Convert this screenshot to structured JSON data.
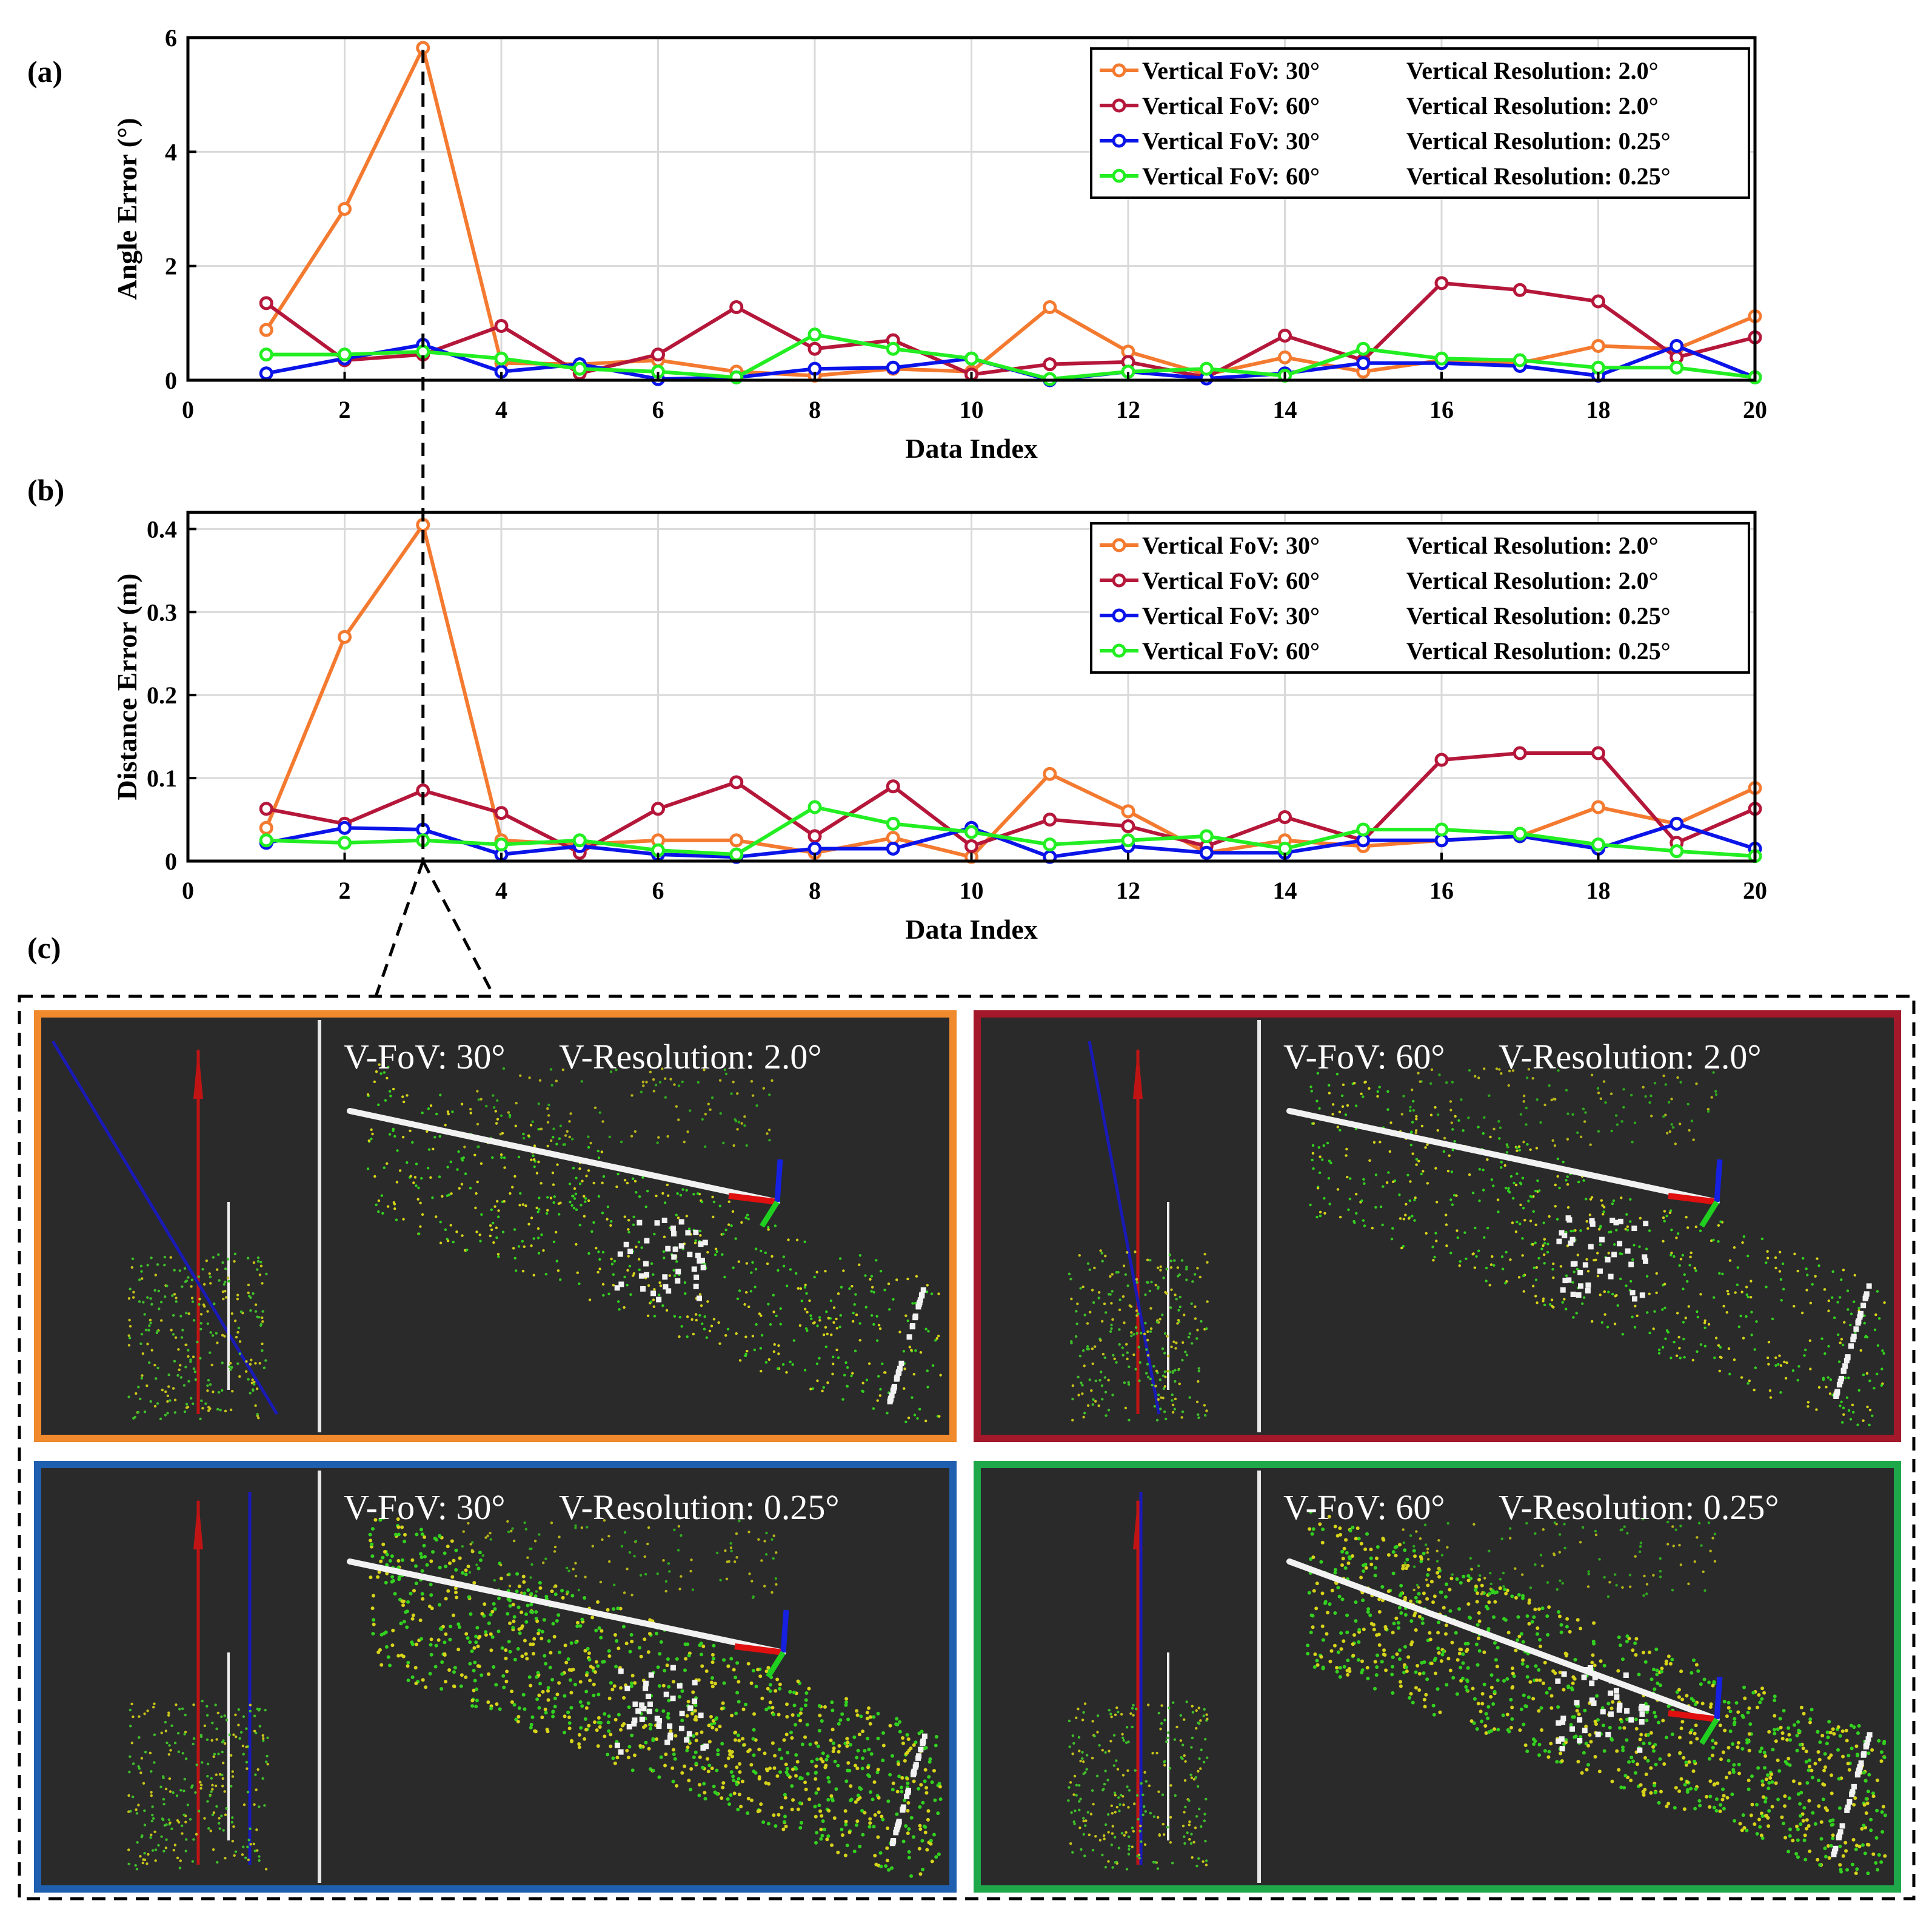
{
  "colors": {
    "orange": "#F47A30",
    "red": "#B5173A",
    "blue": "#0A14E8",
    "green": "#22EE22",
    "grid": "#d9d9d9",
    "scene_bg": "#2a2a2a",
    "frame_orange": "#F08A2C",
    "frame_red": "#A3182A",
    "frame_blue": "#1F5FAF",
    "frame_green": "#1EA84A"
  },
  "panels": {
    "a": "(a)",
    "b": "(b)",
    "c": "(c)"
  },
  "chart_data": [
    {
      "type": "line",
      "panel": "(a)",
      "ylabel": "Angle Error (°)",
      "xlabel": "Data Index",
      "xlim": [
        0,
        20
      ],
      "ylim": [
        0,
        6
      ],
      "xticks": [
        0,
        2,
        4,
        6,
        8,
        10,
        12,
        14,
        16,
        18,
        20
      ],
      "yticks": [
        0,
        2,
        4,
        6
      ],
      "x": [
        1,
        2,
        3,
        4,
        5,
        6,
        7,
        8,
        9,
        10,
        11,
        12,
        13,
        14,
        15,
        16,
        17,
        18,
        19,
        20
      ],
      "legend_position": "top-right",
      "series": [
        {
          "name_fov": "Vertical FoV: 30°",
          "name_res": "Vertical Resolution: 2.0°",
          "color": "orange",
          "values": [
            0.88,
            3.0,
            5.82,
            0.3,
            0.28,
            0.35,
            0.15,
            0.08,
            0.2,
            0.15,
            1.28,
            0.5,
            0.1,
            0.4,
            0.15,
            0.35,
            0.3,
            0.6,
            0.55,
            1.12
          ]
        },
        {
          "name_fov": "Vertical FoV: 60°",
          "name_res": "Vertical Resolution: 2.0°",
          "color": "red",
          "values": [
            1.35,
            0.35,
            0.45,
            0.95,
            0.12,
            0.45,
            1.28,
            0.55,
            0.7,
            0.1,
            0.28,
            0.32,
            0.05,
            0.78,
            0.35,
            1.7,
            1.58,
            1.38,
            0.4,
            0.75
          ]
        },
        {
          "name_fov": "Vertical FoV: 30°",
          "name_res": "Vertical Resolution: 0.25°",
          "color": "blue",
          "values": [
            0.12,
            0.38,
            0.62,
            0.15,
            0.28,
            0.02,
            0.05,
            0.2,
            0.22,
            0.38,
            0.0,
            0.15,
            0.03,
            0.12,
            0.3,
            0.3,
            0.25,
            0.08,
            0.6,
            0.05
          ]
        },
        {
          "name_fov": "Vertical FoV: 60°",
          "name_res": "Vertical Resolution: 0.25°",
          "color": "green",
          "values": [
            0.45,
            0.45,
            0.5,
            0.38,
            0.2,
            0.15,
            0.05,
            0.8,
            0.55,
            0.38,
            0.02,
            0.15,
            0.2,
            0.08,
            0.55,
            0.38,
            0.35,
            0.22,
            0.22,
            0.05
          ]
        }
      ]
    },
    {
      "type": "line",
      "panel": "(b)",
      "ylabel": "Distance Error (m)",
      "xlabel": "Data Index",
      "xlim": [
        0,
        20
      ],
      "ylim": [
        0,
        0.42
      ],
      "xticks": [
        0,
        2,
        4,
        6,
        8,
        10,
        12,
        14,
        16,
        18,
        20
      ],
      "yticks": [
        0,
        0.1,
        0.2,
        0.3,
        0.4
      ],
      "ytick_labels": [
        "0",
        "0.1",
        "0.2",
        "0.3",
        "0.4"
      ],
      "x": [
        1,
        2,
        3,
        4,
        5,
        6,
        7,
        8,
        9,
        10,
        11,
        12,
        13,
        14,
        15,
        16,
        17,
        18,
        19,
        20
      ],
      "legend_position": "top-right",
      "series": [
        {
          "name_fov": "Vertical FoV: 30°",
          "name_res": "Vertical Resolution: 2.0°",
          "color": "orange",
          "values": [
            0.04,
            0.27,
            0.405,
            0.025,
            0.02,
            0.025,
            0.025,
            0.01,
            0.028,
            0.005,
            0.105,
            0.06,
            0.01,
            0.025,
            0.018,
            0.025,
            0.03,
            0.065,
            0.045,
            0.088
          ]
        },
        {
          "name_fov": "Vertical FoV: 60°",
          "name_res": "Vertical Resolution: 2.0°",
          "color": "red",
          "values": [
            0.063,
            0.045,
            0.085,
            0.058,
            0.01,
            0.063,
            0.095,
            0.03,
            0.09,
            0.018,
            0.05,
            0.042,
            0.018,
            0.053,
            0.025,
            0.122,
            0.13,
            0.13,
            0.022,
            0.063
          ]
        },
        {
          "name_fov": "Vertical FoV: 30°",
          "name_res": "Vertical Resolution: 0.25°",
          "color": "blue",
          "values": [
            0.022,
            0.04,
            0.038,
            0.008,
            0.018,
            0.008,
            0.005,
            0.015,
            0.015,
            0.04,
            0.005,
            0.018,
            0.01,
            0.01,
            0.025,
            0.025,
            0.03,
            0.015,
            0.045,
            0.015
          ]
        },
        {
          "name_fov": "Vertical FoV: 60°",
          "name_res": "Vertical Resolution: 0.25°",
          "color": "green",
          "values": [
            0.025,
            0.022,
            0.025,
            0.02,
            0.025,
            0.013,
            0.008,
            0.065,
            0.045,
            0.035,
            0.02,
            0.025,
            0.03,
            0.015,
            0.038,
            0.038,
            0.033,
            0.02,
            0.012,
            0.006
          ]
        }
      ]
    }
  ],
  "scenes": [
    {
      "fov": "V-FoV: 30°",
      "res": "V-Resolution: 2.0°",
      "frame": "frame_orange",
      "axis_color": "blue"
    },
    {
      "fov": "V-FoV: 60°",
      "res": "V-Resolution: 2.0°",
      "frame": "frame_red",
      "axis_color": "blue"
    },
    {
      "fov": "V-FoV: 30°",
      "res": "V-Resolution: 0.25°",
      "frame": "frame_blue",
      "axis_color": "blue"
    },
    {
      "fov": "V-FoV: 60°",
      "res": "V-Resolution: 0.25°",
      "frame": "frame_green",
      "axis_color": "blue"
    }
  ]
}
